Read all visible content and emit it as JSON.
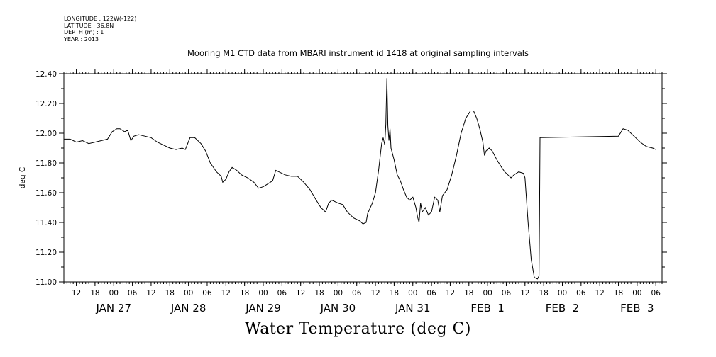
{
  "meta": {
    "longitude": "LONGITUDE : 122W(-122)",
    "latitude": "LATITUDE : 36.8N",
    "depth": "DEPTH (m) : 1",
    "year": "YEAR : 2013"
  },
  "chart_data": {
    "type": "line",
    "title": "Mooring M1 CTD data from MBARI instrument id 1418 at original sampling intervals",
    "xlabel": "Water Temperature (deg C)",
    "ylabel": "deg C",
    "ylim": [
      11.0,
      12.4
    ],
    "yticks": [
      "11.00",
      "11.20",
      "11.40",
      "11.60",
      "11.80",
      "12.00",
      "12.20",
      "12.40"
    ],
    "xlim": [
      "2013-01-26T08:00",
      "2013-02-03T08:00"
    ],
    "hour_ticks": [
      {
        "t": "2013-01-26T12:00",
        "label": "12"
      },
      {
        "t": "2013-01-26T18:00",
        "label": "18"
      },
      {
        "t": "2013-01-27T00:00",
        "label": "00"
      },
      {
        "t": "2013-01-27T06:00",
        "label": "06"
      },
      {
        "t": "2013-01-27T12:00",
        "label": "12"
      },
      {
        "t": "2013-01-27T18:00",
        "label": "18"
      },
      {
        "t": "2013-01-28T00:00",
        "label": "00"
      },
      {
        "t": "2013-01-28T06:00",
        "label": "06"
      },
      {
        "t": "2013-01-28T12:00",
        "label": "12"
      },
      {
        "t": "2013-01-28T18:00",
        "label": "18"
      },
      {
        "t": "2013-01-29T00:00",
        "label": "00"
      },
      {
        "t": "2013-01-29T06:00",
        "label": "06"
      },
      {
        "t": "2013-01-29T12:00",
        "label": "12"
      },
      {
        "t": "2013-01-29T18:00",
        "label": "18"
      },
      {
        "t": "2013-01-30T00:00",
        "label": "00"
      },
      {
        "t": "2013-01-30T06:00",
        "label": "06"
      },
      {
        "t": "2013-01-30T12:00",
        "label": "12"
      },
      {
        "t": "2013-01-30T18:00",
        "label": "18"
      },
      {
        "t": "2013-01-31T00:00",
        "label": "00"
      },
      {
        "t": "2013-01-31T06:00",
        "label": "06"
      },
      {
        "t": "2013-01-31T12:00",
        "label": "12"
      },
      {
        "t": "2013-01-31T18:00",
        "label": "18"
      },
      {
        "t": "2013-02-01T00:00",
        "label": "00"
      },
      {
        "t": "2013-02-01T06:00",
        "label": "06"
      },
      {
        "t": "2013-02-01T12:00",
        "label": "12"
      },
      {
        "t": "2013-02-01T18:00",
        "label": "18"
      },
      {
        "t": "2013-02-02T00:00",
        "label": "00"
      },
      {
        "t": "2013-02-02T06:00",
        "label": "06"
      },
      {
        "t": "2013-02-02T12:00",
        "label": "12"
      },
      {
        "t": "2013-02-02T18:00",
        "label": "18"
      },
      {
        "t": "2013-02-03T00:00",
        "label": "00"
      },
      {
        "t": "2013-02-03T06:00",
        "label": "06"
      }
    ],
    "date_labels": [
      {
        "t": "2013-01-27T00:00",
        "label": "JAN 27"
      },
      {
        "t": "2013-01-28T00:00",
        "label": "JAN 28"
      },
      {
        "t": "2013-01-29T00:00",
        "label": "JAN 29"
      },
      {
        "t": "2013-01-30T00:00",
        "label": "JAN 30"
      },
      {
        "t": "2013-01-31T00:00",
        "label": "JAN 31"
      },
      {
        "t": "2013-02-01T00:00",
        "label": "FEB  1"
      },
      {
        "t": "2013-02-02T00:00",
        "label": "FEB  2"
      },
      {
        "t": "2013-02-03T00:00",
        "label": "FEB  3"
      }
    ],
    "grid": false,
    "series": [
      {
        "points": [
          [
            "2013-01-26T08:00",
            11.96
          ],
          [
            "2013-01-26T10:00",
            11.96
          ],
          [
            "2013-01-26T12:00",
            11.94
          ],
          [
            "2013-01-26T14:00",
            11.95
          ],
          [
            "2013-01-26T16:00",
            11.93
          ],
          [
            "2013-01-26T18:00",
            11.94
          ],
          [
            "2013-01-26T20:00",
            11.95
          ],
          [
            "2013-01-26T22:00",
            11.96
          ],
          [
            "2013-01-26T23:30",
            12.01
          ],
          [
            "2013-01-27T01:00",
            12.03
          ],
          [
            "2013-01-27T02:00",
            12.03
          ],
          [
            "2013-01-27T03:30",
            12.01
          ],
          [
            "2013-01-27T04:30",
            12.02
          ],
          [
            "2013-01-27T05:30",
            11.95
          ],
          [
            "2013-01-27T06:30",
            11.98
          ],
          [
            "2013-01-27T08:00",
            11.99
          ],
          [
            "2013-01-27T10:00",
            11.98
          ],
          [
            "2013-01-27T12:00",
            11.97
          ],
          [
            "2013-01-27T14:00",
            11.94
          ],
          [
            "2013-01-27T16:00",
            11.92
          ],
          [
            "2013-01-27T18:00",
            11.9
          ],
          [
            "2013-01-27T20:00",
            11.89
          ],
          [
            "2013-01-27T22:00",
            11.9
          ],
          [
            "2013-01-27T23:00",
            11.89
          ],
          [
            "2013-01-28T00:30",
            11.97
          ],
          [
            "2013-01-28T02:00",
            11.97
          ],
          [
            "2013-01-28T04:00",
            11.93
          ],
          [
            "2013-01-28T05:30",
            11.88
          ],
          [
            "2013-01-28T07:00",
            11.8
          ],
          [
            "2013-01-28T09:00",
            11.74
          ],
          [
            "2013-01-28T10:30",
            11.71
          ],
          [
            "2013-01-28T11:00",
            11.67
          ],
          [
            "2013-01-28T12:00",
            11.69
          ],
          [
            "2013-01-28T13:00",
            11.74
          ],
          [
            "2013-01-28T14:00",
            11.77
          ],
          [
            "2013-01-28T15:30",
            11.75
          ],
          [
            "2013-01-28T17:00",
            11.72
          ],
          [
            "2013-01-28T19:00",
            11.7
          ],
          [
            "2013-01-28T21:00",
            11.67
          ],
          [
            "2013-01-28T22:30",
            11.63
          ],
          [
            "2013-01-29T00:00",
            11.64
          ],
          [
            "2013-01-29T01:30",
            11.66
          ],
          [
            "2013-01-29T03:00",
            11.68
          ],
          [
            "2013-01-29T04:00",
            11.75
          ],
          [
            "2013-01-29T05:00",
            11.74
          ],
          [
            "2013-01-29T07:00",
            11.72
          ],
          [
            "2013-01-29T09:00",
            11.71
          ],
          [
            "2013-01-29T11:00",
            11.71
          ],
          [
            "2013-01-29T13:00",
            11.67
          ],
          [
            "2013-01-29T15:00",
            11.62
          ],
          [
            "2013-01-29T17:00",
            11.55
          ],
          [
            "2013-01-29T18:30",
            11.5
          ],
          [
            "2013-01-29T20:00",
            11.47
          ],
          [
            "2013-01-29T21:00",
            11.53
          ],
          [
            "2013-01-29T22:00",
            11.55
          ],
          [
            "2013-01-30T00:00",
            11.53
          ],
          [
            "2013-01-30T01:30",
            11.52
          ],
          [
            "2013-01-30T03:00",
            11.47
          ],
          [
            "2013-01-30T05:00",
            11.43
          ],
          [
            "2013-01-30T07:00",
            11.41
          ],
          [
            "2013-01-30T08:00",
            11.39
          ],
          [
            "2013-01-30T09:00",
            11.4
          ],
          [
            "2013-01-30T09:30",
            11.46
          ],
          [
            "2013-01-30T11:00",
            11.53
          ],
          [
            "2013-01-30T12:00",
            11.6
          ],
          [
            "2013-01-30T13:00",
            11.75
          ],
          [
            "2013-01-30T14:00",
            11.93
          ],
          [
            "2013-01-30T14:30",
            11.97
          ],
          [
            "2013-01-30T15:00",
            11.92
          ],
          [
            "2013-01-30T15:20",
            12.06
          ],
          [
            "2013-01-30T15:40",
            12.37
          ],
          [
            "2013-01-30T16:00",
            12.05
          ],
          [
            "2013-01-30T16:20",
            11.95
          ],
          [
            "2013-01-30T16:40",
            12.03
          ],
          [
            "2013-01-30T17:00",
            11.9
          ],
          [
            "2013-01-30T18:00",
            11.82
          ],
          [
            "2013-01-30T19:00",
            11.72
          ],
          [
            "2013-01-30T20:00",
            11.68
          ],
          [
            "2013-01-30T21:00",
            11.62
          ],
          [
            "2013-01-30T22:00",
            11.57
          ],
          [
            "2013-01-30T23:00",
            11.55
          ],
          [
            "2013-01-31T00:00",
            11.57
          ],
          [
            "2013-01-31T01:00",
            11.5
          ],
          [
            "2013-01-31T01:30",
            11.44
          ],
          [
            "2013-01-31T02:00",
            11.4
          ],
          [
            "2013-01-31T02:30",
            11.53
          ],
          [
            "2013-01-31T03:00",
            11.47
          ],
          [
            "2013-01-31T04:00",
            11.5
          ],
          [
            "2013-01-31T05:00",
            11.45
          ],
          [
            "2013-01-31T06:00",
            11.47
          ],
          [
            "2013-01-31T07:00",
            11.57
          ],
          [
            "2013-01-31T08:00",
            11.55
          ],
          [
            "2013-01-31T08:40",
            11.47
          ],
          [
            "2013-01-31T09:30",
            11.58
          ],
          [
            "2013-01-31T11:00",
            11.62
          ],
          [
            "2013-01-31T12:30",
            11.72
          ],
          [
            "2013-01-31T14:00",
            11.85
          ],
          [
            "2013-01-31T15:30",
            12.0
          ],
          [
            "2013-01-31T17:00",
            12.1
          ],
          [
            "2013-01-31T18:30",
            12.15
          ],
          [
            "2013-01-31T19:30",
            12.15
          ],
          [
            "2013-01-31T20:30",
            12.1
          ],
          [
            "2013-01-31T21:30",
            12.03
          ],
          [
            "2013-01-31T22:30",
            11.94
          ],
          [
            "2013-01-31T23:00",
            11.85
          ],
          [
            "2013-01-31T23:30",
            11.88
          ],
          [
            "2013-02-01T00:30",
            11.9
          ],
          [
            "2013-02-01T01:30",
            11.88
          ],
          [
            "2013-02-01T03:00",
            11.82
          ],
          [
            "2013-02-01T04:30",
            11.77
          ],
          [
            "2013-02-01T05:30",
            11.74
          ],
          [
            "2013-02-01T06:30",
            11.72
          ],
          [
            "2013-02-01T07:30",
            11.7
          ],
          [
            "2013-02-01T08:30",
            11.72
          ],
          [
            "2013-02-01T10:00",
            11.74
          ],
          [
            "2013-02-01T11:30",
            11.73
          ],
          [
            "2013-02-01T12:00",
            11.7
          ],
          [
            "2013-02-01T13:00",
            11.4
          ],
          [
            "2013-02-01T14:00",
            11.15
          ],
          [
            "2013-02-01T15:00",
            11.03
          ],
          [
            "2013-02-01T16:00",
            11.02
          ],
          [
            "2013-02-01T16:30",
            11.04
          ],
          [
            "2013-02-01T16:40",
            11.45
          ],
          [
            "2013-02-01T16:50",
            11.97
          ],
          [
            "2013-02-02T18:00",
            11.98
          ],
          [
            "2013-02-02T19:30",
            12.03
          ],
          [
            "2013-02-02T21:00",
            12.02
          ],
          [
            "2013-02-02T23:00",
            11.98
          ],
          [
            "2013-02-03T01:00",
            11.94
          ],
          [
            "2013-02-03T03:00",
            11.91
          ],
          [
            "2013-02-03T05:00",
            11.9
          ],
          [
            "2013-02-03T06:00",
            11.89
          ]
        ]
      }
    ]
  }
}
